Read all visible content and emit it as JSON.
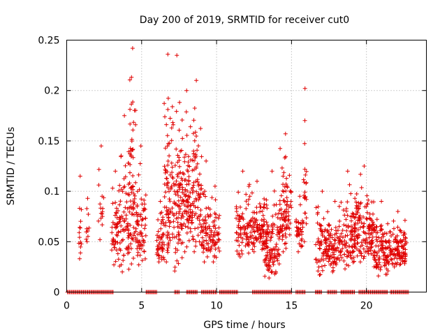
{
  "chart_data": {
    "type": "scatter",
    "title": "Day 200 of 2019, SRMTID for receiver cut0",
    "xlabel": "GPS time / hours",
    "ylabel": "SRMTID / TECUs",
    "xlim": [
      0,
      24
    ],
    "ylim": [
      0,
      0.25
    ],
    "xticks": [
      0,
      5,
      10,
      15,
      20
    ],
    "yticks": [
      0,
      0.05,
      0.1,
      0.15,
      0.2,
      0.25
    ],
    "ytick_labels": [
      "0",
      "0.05",
      "0.1",
      "0.15",
      "0.2",
      "0.25"
    ],
    "grid": true,
    "marker": "+",
    "color": "#e00000",
    "clusters": [
      {
        "x_start": 0.8,
        "x_end": 1.0,
        "y_min": 0.033,
        "y_max": 0.115,
        "count": 12
      },
      {
        "x_start": 1.3,
        "x_end": 1.5,
        "y_min": 0.05,
        "y_max": 0.093,
        "count": 8
      },
      {
        "x_start": 2.1,
        "x_end": 2.5,
        "y_min": 0.052,
        "y_max": 0.145,
        "count": 14
      },
      {
        "x_start": 3.0,
        "x_end": 3.5,
        "y_min": 0.027,
        "y_max": 0.12,
        "count": 45
      },
      {
        "x_start": 3.5,
        "x_end": 4.2,
        "y_min": 0.02,
        "y_max": 0.175,
        "count": 70
      },
      {
        "x_start": 4.2,
        "x_end": 4.6,
        "y_min": 0.028,
        "y_max": 0.242,
        "count": 60
      },
      {
        "x_start": 4.6,
        "x_end": 5.3,
        "y_min": 0.027,
        "y_max": 0.145,
        "count": 70
      },
      {
        "x_start": 6.0,
        "x_end": 6.5,
        "y_min": 0.03,
        "y_max": 0.09,
        "count": 45
      },
      {
        "x_start": 6.5,
        "x_end": 7.0,
        "y_min": 0.03,
        "y_max": 0.236,
        "count": 70
      },
      {
        "x_start": 7.0,
        "x_end": 7.7,
        "y_min": 0.021,
        "y_max": 0.235,
        "count": 90
      },
      {
        "x_start": 7.7,
        "x_end": 8.3,
        "y_min": 0.04,
        "y_max": 0.2,
        "count": 80
      },
      {
        "x_start": 8.3,
        "x_end": 9.0,
        "y_min": 0.04,
        "y_max": 0.21,
        "count": 80
      },
      {
        "x_start": 9.0,
        "x_end": 9.6,
        "y_min": 0.03,
        "y_max": 0.13,
        "count": 55
      },
      {
        "x_start": 9.6,
        "x_end": 10.2,
        "y_min": 0.03,
        "y_max": 0.105,
        "count": 45
      },
      {
        "x_start": 11.3,
        "x_end": 12.2,
        "y_min": 0.035,
        "y_max": 0.12,
        "count": 70
      },
      {
        "x_start": 12.2,
        "x_end": 13.2,
        "y_min": 0.04,
        "y_max": 0.11,
        "count": 95
      },
      {
        "x_start": 13.2,
        "x_end": 14.2,
        "y_min": 0.014,
        "y_max": 0.12,
        "count": 110
      },
      {
        "x_start": 14.2,
        "x_end": 15.0,
        "y_min": 0.04,
        "y_max": 0.157,
        "count": 85
      },
      {
        "x_start": 15.3,
        "x_end": 15.8,
        "y_min": 0.04,
        "y_max": 0.095,
        "count": 35
      },
      {
        "x_start": 15.8,
        "x_end": 16.0,
        "y_min": 0.05,
        "y_max": 0.202,
        "count": 20
      },
      {
        "x_start": 16.6,
        "x_end": 17.5,
        "y_min": 0.017,
        "y_max": 0.1,
        "count": 80
      },
      {
        "x_start": 17.5,
        "x_end": 18.3,
        "y_min": 0.02,
        "y_max": 0.09,
        "count": 70
      },
      {
        "x_start": 18.3,
        "x_end": 19.2,
        "y_min": 0.023,
        "y_max": 0.12,
        "count": 85
      },
      {
        "x_start": 19.2,
        "x_end": 20.5,
        "y_min": 0.03,
        "y_max": 0.125,
        "count": 140
      },
      {
        "x_start": 20.5,
        "x_end": 21.5,
        "y_min": 0.016,
        "y_max": 0.09,
        "count": 100
      },
      {
        "x_start": 21.5,
        "x_end": 22.7,
        "y_min": 0.025,
        "y_max": 0.08,
        "count": 110
      }
    ],
    "zero_segments": [
      [
        0.05,
        3.1
      ],
      [
        5.3,
        6.0
      ],
      [
        7.2,
        7.5
      ],
      [
        8.0,
        8.7
      ],
      [
        9.0,
        10.0
      ],
      [
        10.2,
        11.4
      ],
      [
        12.4,
        15.0
      ],
      [
        15.3,
        15.9
      ],
      [
        16.6,
        17.0
      ],
      [
        17.4,
        18.0
      ],
      [
        18.3,
        19.2
      ],
      [
        19.5,
        21.4
      ],
      [
        21.6,
        22.8
      ]
    ]
  }
}
